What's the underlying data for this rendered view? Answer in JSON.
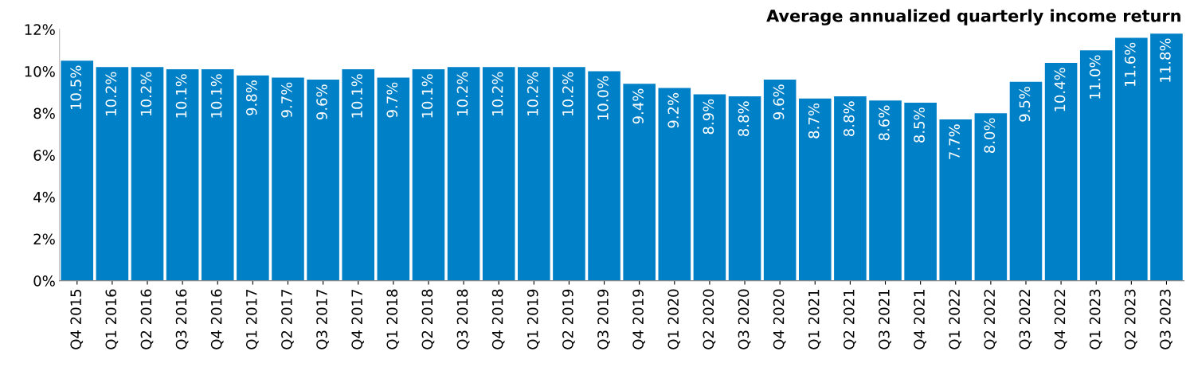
{
  "chart_data": {
    "type": "bar",
    "title": "Average annualized quarterly income return",
    "categories": [
      "Q4 2015",
      "Q1 2016",
      "Q2 2016",
      "Q3 2016",
      "Q4 2016",
      "Q1 2017",
      "Q2 2017",
      "Q3 2017",
      "Q4 2017",
      "Q1 2018",
      "Q2 2018",
      "Q3 2018",
      "Q4 2018",
      "Q1 2019",
      "Q2 2019",
      "Q3 2019",
      "Q4 2019",
      "Q1 2020",
      "Q2 2020",
      "Q3 2020",
      "Q4 2020",
      "Q1 2021",
      "Q2 2021",
      "Q3 2021",
      "Q4 2021",
      "Q1 2022",
      "Q2 2022",
      "Q3 2022",
      "Q4 2022",
      "Q1 2023",
      "Q2 2023",
      "Q3 2023"
    ],
    "values": [
      10.5,
      10.2,
      10.2,
      10.1,
      10.1,
      9.8,
      9.7,
      9.6,
      10.1,
      9.7,
      10.1,
      10.2,
      10.2,
      10.2,
      10.2,
      10.0,
      9.4,
      9.2,
      8.9,
      8.8,
      9.6,
      8.7,
      8.8,
      8.6,
      8.5,
      7.7,
      8.0,
      9.5,
      10.4,
      11.0,
      11.6,
      11.8
    ],
    "value_labels": [
      "10.5%",
      "10.2%",
      "10.2%",
      "10.1%",
      "10.1%",
      "9.8%",
      "9.7%",
      "9.6%",
      "10.1%",
      "9.7%",
      "10.1%",
      "10.2%",
      "10.2%",
      "10.2%",
      "10.2%",
      "10.0%",
      "9.4%",
      "9.2%",
      "8.9%",
      "8.8%",
      "9.6%",
      "8.7%",
      "8.8%",
      "8.6%",
      "8.5%",
      "7.7%",
      "8.0%",
      "9.5%",
      "10.4%",
      "11.0%",
      "11.6%",
      "11.8%"
    ],
    "color": "#0080c6",
    "ylim": [
      0,
      12
    ],
    "yticks": [
      {
        "value": 0,
        "label": "0%"
      },
      {
        "value": 2,
        "label": "2%"
      },
      {
        "value": 4,
        "label": "4%"
      },
      {
        "value": 6,
        "label": "6%"
      },
      {
        "value": 8,
        "label": "8%"
      },
      {
        "value": 10,
        "label": "10%"
      },
      {
        "value": 12,
        "label": "12%"
      }
    ],
    "grid": false
  }
}
